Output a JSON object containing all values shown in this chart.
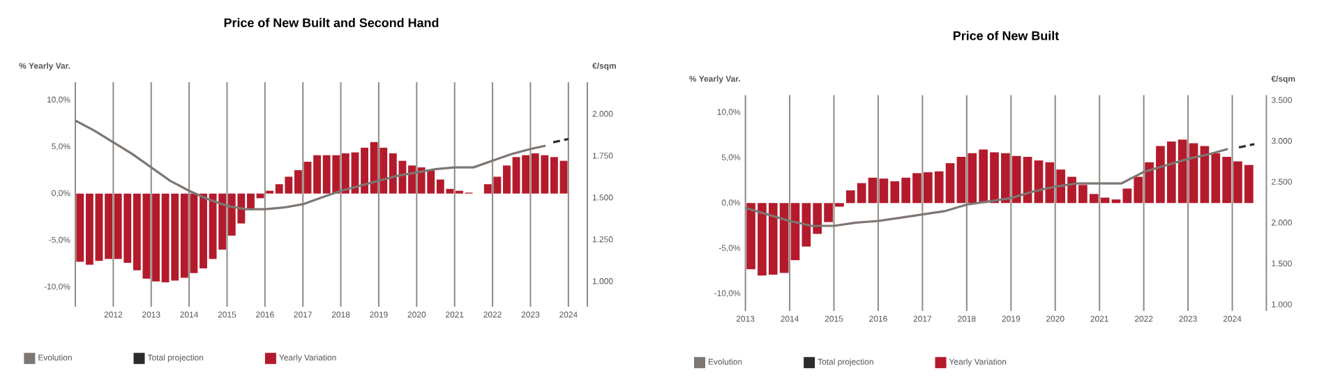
{
  "chart_data": [
    {
      "type": "bar",
      "title": "Price of New Built and Second Hand",
      "ylabel": "% Yearly Var.",
      "y2label": "€/sqm",
      "xlim": [
        2011,
        2024.5
      ],
      "ylim": [
        -12.1,
        11.9
      ],
      "y2lim": [
        847,
        2189
      ],
      "xticks": [
        {
          "value": 2011,
          "label": null
        },
        2012,
        2013,
        2014,
        2015,
        2016,
        2017,
        2018,
        2019,
        2020,
        2021,
        2022,
        2023,
        2024
      ],
      "yticks": [
        {
          "value": -10,
          "label": "-10,0%"
        },
        {
          "value": -5,
          "label": "-5,0%"
        },
        {
          "value": 0,
          "label": "0,0%"
        },
        {
          "value": 5,
          "label": "5,0%"
        },
        {
          "value": 10,
          "label": "10,0%"
        }
      ],
      "y2ticks": [
        {
          "value": 1000,
          "label": "1.000"
        },
        {
          "value": 1250,
          "label": "1.250"
        },
        {
          "value": 1500,
          "label": "1.500"
        },
        {
          "value": 1750,
          "label": "1.750"
        },
        {
          "value": 2000,
          "label": "2.000"
        }
      ],
      "grid": "x",
      "legend": "bottom",
      "series": [
        {
          "name": "Evolution",
          "type": "line",
          "axis": "y2",
          "color": "#7d7672",
          "line_style": "solid",
          "x": [
            2011,
            2011.5,
            2012,
            2012.5,
            2013,
            2013.5,
            2014,
            2014.5,
            2015,
            2015.5,
            2016,
            2016.5,
            2017,
            2017.5,
            2018,
            2018.5,
            2019,
            2019.5,
            2020,
            2020.5,
            2021,
            2021.5,
            2022,
            2022.5,
            2023,
            2023.4
          ],
          "values": [
            1960,
            1900,
            1830,
            1760,
            1680,
            1600,
            1540,
            1490,
            1450,
            1430,
            1430,
            1440,
            1460,
            1500,
            1540,
            1570,
            1600,
            1630,
            1650,
            1670,
            1680,
            1680,
            1720,
            1760,
            1790,
            1810
          ]
        },
        {
          "name": "Total projection",
          "type": "line",
          "axis": "y2",
          "color": "#2b2b2b",
          "line_style": "dashed",
          "x": [
            2023.6,
            2024
          ],
          "values": [
            1830,
            1850
          ]
        },
        {
          "name": "Yearly Variation",
          "color": "#b31b2c",
          "x": [
            2011.125,
            2011.375,
            2011.625,
            2011.875,
            2012.125,
            2012.375,
            2012.625,
            2012.875,
            2013.125,
            2013.375,
            2013.625,
            2013.875,
            2014.125,
            2014.375,
            2014.625,
            2014.875,
            2015.125,
            2015.375,
            2015.625,
            2015.875,
            2016.125,
            2016.375,
            2016.625,
            2016.875,
            2017.125,
            2017.375,
            2017.625,
            2017.875,
            2018.125,
            2018.375,
            2018.625,
            2018.875,
            2019.125,
            2019.375,
            2019.625,
            2019.875,
            2020.125,
            2020.375,
            2020.625,
            2020.875,
            2021.125,
            2021.375,
            2021.625,
            2021.875,
            2022.125,
            2022.375,
            2022.625,
            2022.875,
            2023.125,
            2023.375,
            2023.625,
            2023.875
          ],
          "values": [
            -7.3,
            -7.6,
            -7.2,
            -7.0,
            -7.0,
            -7.4,
            -8.2,
            -9.1,
            -9.4,
            -9.5,
            -9.3,
            -9.0,
            -8.5,
            -8.0,
            -7.0,
            -6.0,
            -4.5,
            -3.2,
            -1.7,
            -0.5,
            0.3,
            1.0,
            1.8,
            2.5,
            3.4,
            4.1,
            4.1,
            4.1,
            4.3,
            4.4,
            4.9,
            5.5,
            4.9,
            4.3,
            3.5,
            3.0,
            2.8,
            2.5,
            1.5,
            0.5,
            0.3,
            0.1,
            0.0,
            1.0,
            1.8,
            3.0,
            3.9,
            4.1,
            4.3,
            4.1,
            3.9,
            3.5
          ]
        }
      ]
    },
    {
      "type": "bar",
      "title": "Price of New Built",
      "ylabel": "% Yearly Var.",
      "y2label": "€/sqm",
      "xlim": [
        2013,
        2024.77
      ],
      "ylim": [
        -11.9,
        11.9
      ],
      "y2lim": [
        920,
        3558
      ],
      "xticks": [
        2013,
        2014,
        2015,
        2016,
        2017,
        2018,
        2019,
        2020,
        2021,
        2022,
        2023,
        2024
      ],
      "yticks": [
        {
          "value": -10,
          "label": "-10,0%"
        },
        {
          "value": -5,
          "label": "-5,0%"
        },
        {
          "value": 0,
          "label": "0,0%"
        },
        {
          "value": 5,
          "label": "5,0%"
        },
        {
          "value": 10,
          "label": "10,0%"
        }
      ],
      "y2ticks": [
        {
          "value": 1000,
          "label": "1.000"
        },
        {
          "value": 1500,
          "label": "1.500"
        },
        {
          "value": 2000,
          "label": "2.000"
        },
        {
          "value": 2500,
          "label": "2.500"
        },
        {
          "value": 3000,
          "label": "3.000"
        },
        {
          "value": 3500,
          "label": "3.500"
        }
      ],
      "grid": "x",
      "legend": "bottom",
      "series": [
        {
          "name": "Evolution",
          "type": "line",
          "axis": "y2",
          "color": "#7d7672",
          "line_style": "solid",
          "x": [
            2013,
            2013.5,
            2014,
            2014.5,
            2015,
            2015.5,
            2016,
            2016.5,
            2017,
            2017.5,
            2018,
            2018.5,
            2019,
            2019.5,
            2020,
            2020.5,
            2021,
            2021.5,
            2022,
            2022.5,
            2023,
            2023.5,
            2023.9
          ],
          "values": [
            2180,
            2100,
            2020,
            1960,
            1960,
            2000,
            2020,
            2060,
            2100,
            2140,
            2220,
            2260,
            2300,
            2380,
            2440,
            2480,
            2480,
            2480,
            2620,
            2700,
            2780,
            2840,
            2900
          ]
        },
        {
          "name": "Total projection",
          "type": "line",
          "axis": "y2",
          "color": "#2b2b2b",
          "line_style": "dashed",
          "x": [
            2024.15,
            2024.5
          ],
          "values": [
            2920,
            2960
          ]
        },
        {
          "name": "Yearly Variation",
          "color": "#b31b2c",
          "x": [
            2013.125,
            2013.375,
            2013.625,
            2013.875,
            2014.125,
            2014.375,
            2014.625,
            2014.875,
            2015.125,
            2015.375,
            2015.625,
            2015.875,
            2016.125,
            2016.375,
            2016.625,
            2016.875,
            2017.125,
            2017.375,
            2017.625,
            2017.875,
            2018.125,
            2018.375,
            2018.625,
            2018.875,
            2019.125,
            2019.375,
            2019.625,
            2019.875,
            2020.125,
            2020.375,
            2020.625,
            2020.875,
            2021.125,
            2021.375,
            2021.625,
            2021.875,
            2022.125,
            2022.375,
            2022.625,
            2022.875,
            2023.125,
            2023.375,
            2023.625,
            2023.875,
            2024.125,
            2024.375
          ],
          "values": [
            -7.3,
            -8.0,
            -7.9,
            -7.7,
            -6.3,
            -4.8,
            -3.4,
            -2.1,
            -0.4,
            1.4,
            2.2,
            2.8,
            2.7,
            2.4,
            2.8,
            3.3,
            3.4,
            3.5,
            4.4,
            5.1,
            5.5,
            5.9,
            5.6,
            5.5,
            5.2,
            5.1,
            4.7,
            4.5,
            3.7,
            2.9,
            2.0,
            1.0,
            0.6,
            0.4,
            1.6,
            2.9,
            4.5,
            6.3,
            6.8,
            7.0,
            6.6,
            6.3,
            5.5,
            5.1,
            4.6,
            4.2
          ]
        }
      ]
    }
  ]
}
